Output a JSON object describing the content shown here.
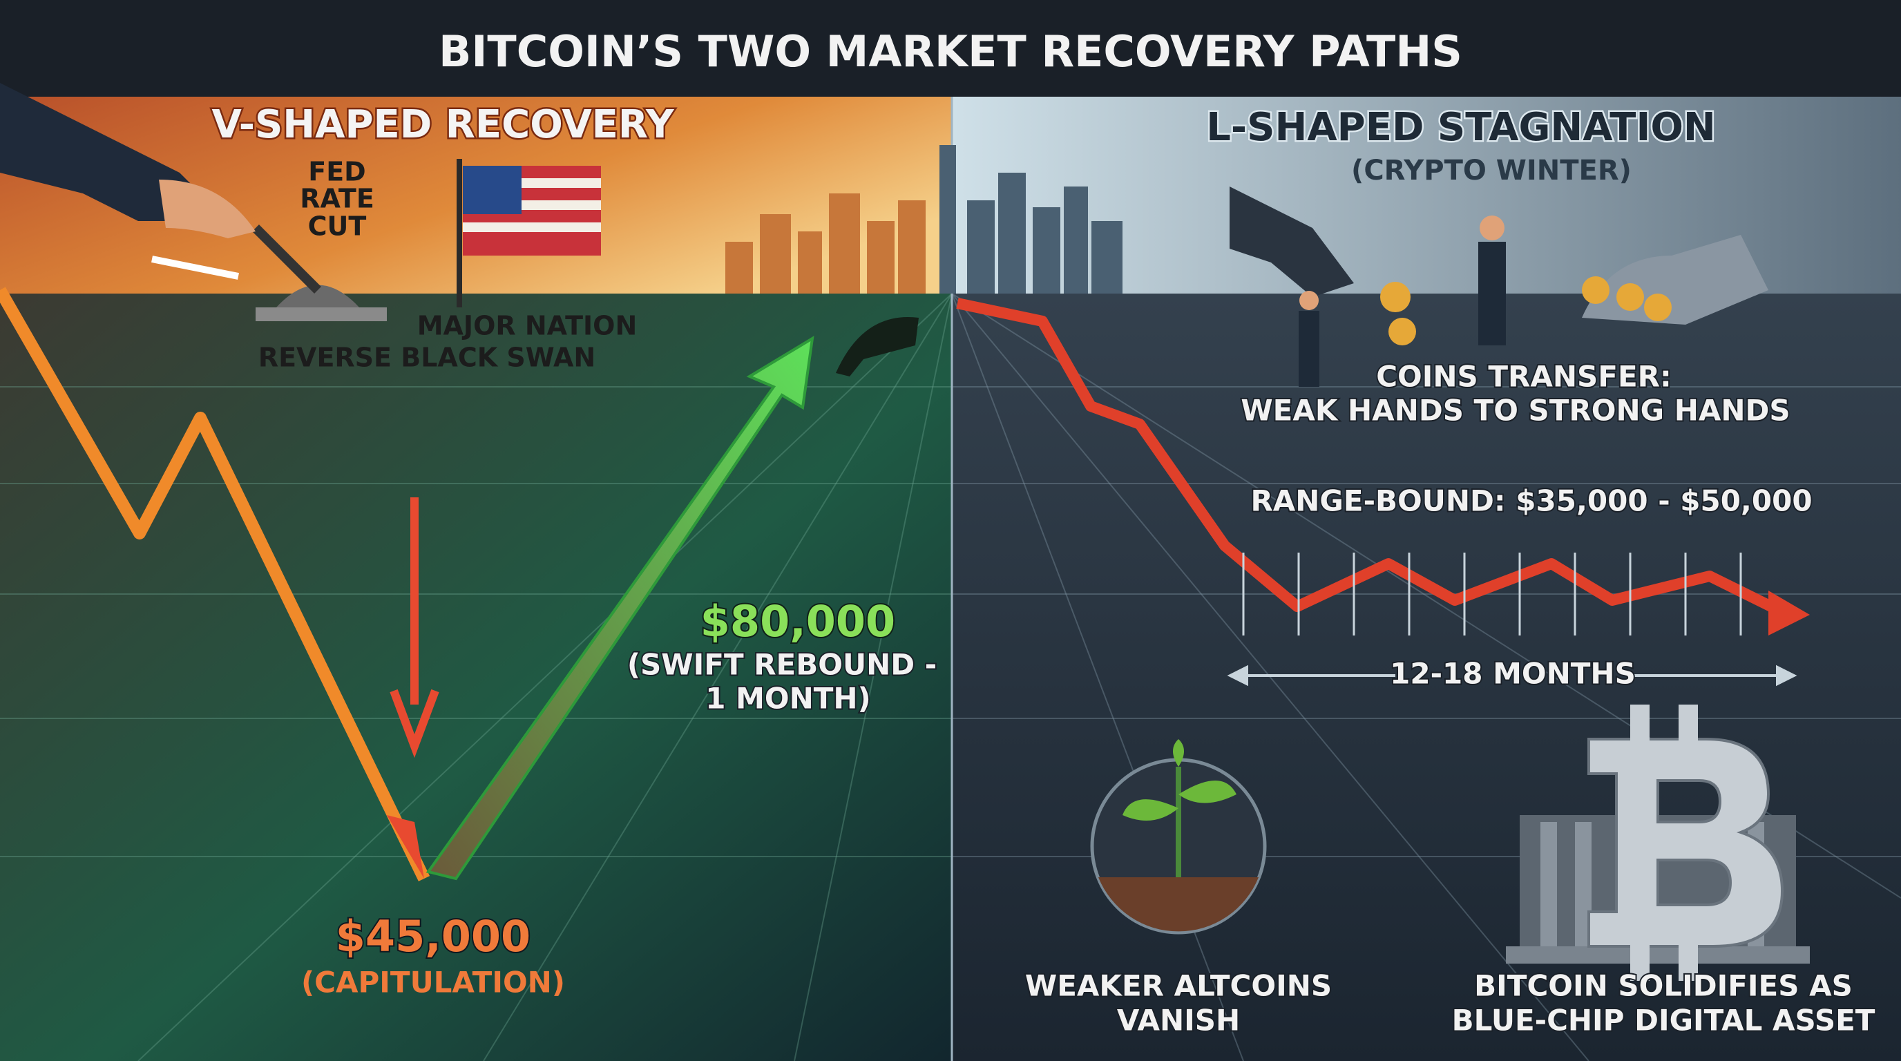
{
  "title": "BITCOIN’S TWO MARKET RECOVERY PATHS",
  "left": {
    "heading": "V-SHAPED RECOVERY",
    "catalyst_1": [
      "FED",
      "RATE",
      "CUT"
    ],
    "catalyst_2": [
      "MAJOR NATION",
      "REVERSE BLACK SWAN"
    ],
    "target_price": "$80,000",
    "target_note": [
      "(SWIFT REBOUND -",
      "1 MONTH)"
    ],
    "bottom_price": "$45,000",
    "bottom_note": "(CAPITULATION)"
  },
  "right": {
    "heading": "L-SHAPED STAGNATION",
    "subheading": "(CRYPTO WINTER)",
    "transfer": [
      "COINS TRANSFER:",
      "WEAK HANDS TO STRONG HANDS"
    ],
    "range": "RANGE-BOUND: $35,000 - $50,000",
    "duration": "12-18 MONTHS",
    "altcoins": [
      "WEAKER ALTCOINS",
      "VANISH"
    ],
    "bitcoin": [
      "BITCOIN SOLIDIFIES AS",
      "BLUE-CHIP DIGITAL ASSET"
    ]
  }
}
